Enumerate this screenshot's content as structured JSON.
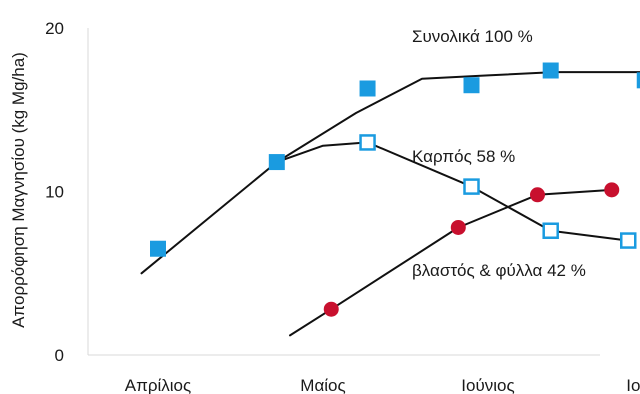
{
  "chart_data": {
    "type": "scatter",
    "title": "",
    "xlabel": "",
    "ylabel": "Απορρόφηση Μαγνησίου (kg Mg/ha)",
    "categories": [
      "Απρίλιος",
      "Μαίος",
      "Ιούνιος",
      "Ιούλιος"
    ],
    "yticks": [
      0,
      10,
      20
    ],
    "ylim": [
      0,
      20
    ],
    "grid": false,
    "series": [
      {
        "name": "Συνολικά 100 %",
        "marker": "filled-square",
        "color": "#1a9be0",
        "points": [
          {
            "x": 0.0,
            "y": 6.5
          },
          {
            "x": 0.72,
            "y": 11.8
          },
          {
            "x": 1.27,
            "y": 16.3
          },
          {
            "x": 1.9,
            "y": 16.5
          },
          {
            "x": 2.38,
            "y": 17.4
          },
          {
            "x": 2.95,
            "y": 16.8
          }
        ],
        "trend": [
          {
            "x": -0.1,
            "y": 5.0
          },
          {
            "x": 0.72,
            "y": 11.8
          },
          {
            "x": 1.2,
            "y": 14.8
          },
          {
            "x": 1.6,
            "y": 16.9
          },
          {
            "x": 2.0,
            "y": 17.1
          },
          {
            "x": 2.4,
            "y": 17.3
          },
          {
            "x": 3.0,
            "y": 17.3
          }
        ]
      },
      {
        "name": "βλαστός & φύλλα 42 %",
        "marker": "open-square",
        "color": "#1a9be0",
        "points": [
          {
            "x": 1.27,
            "y": 13.0
          },
          {
            "x": 1.9,
            "y": 10.3
          },
          {
            "x": 2.38,
            "y": 7.6
          },
          {
            "x": 2.85,
            "y": 7.0
          }
        ],
        "trend": [
          {
            "x": 0.72,
            "y": 11.8
          },
          {
            "x": 1.0,
            "y": 12.8
          },
          {
            "x": 1.27,
            "y": 13.0
          },
          {
            "x": 1.9,
            "y": 10.3
          },
          {
            "x": 2.38,
            "y": 7.6
          },
          {
            "x": 2.85,
            "y": 7.0
          }
        ]
      },
      {
        "name": "Καρπός 58 %",
        "marker": "filled-circle",
        "color": "#c8102e",
        "points": [
          {
            "x": 1.05,
            "y": 2.8
          },
          {
            "x": 1.82,
            "y": 7.8
          },
          {
            "x": 2.3,
            "y": 9.8
          },
          {
            "x": 2.75,
            "y": 10.1
          }
        ],
        "trend": [
          {
            "x": 0.8,
            "y": 1.2
          },
          {
            "x": 1.05,
            "y": 2.8
          },
          {
            "x": 1.82,
            "y": 7.8
          },
          {
            "x": 2.3,
            "y": 9.8
          },
          {
            "x": 2.75,
            "y": 10.1
          }
        ]
      }
    ]
  }
}
